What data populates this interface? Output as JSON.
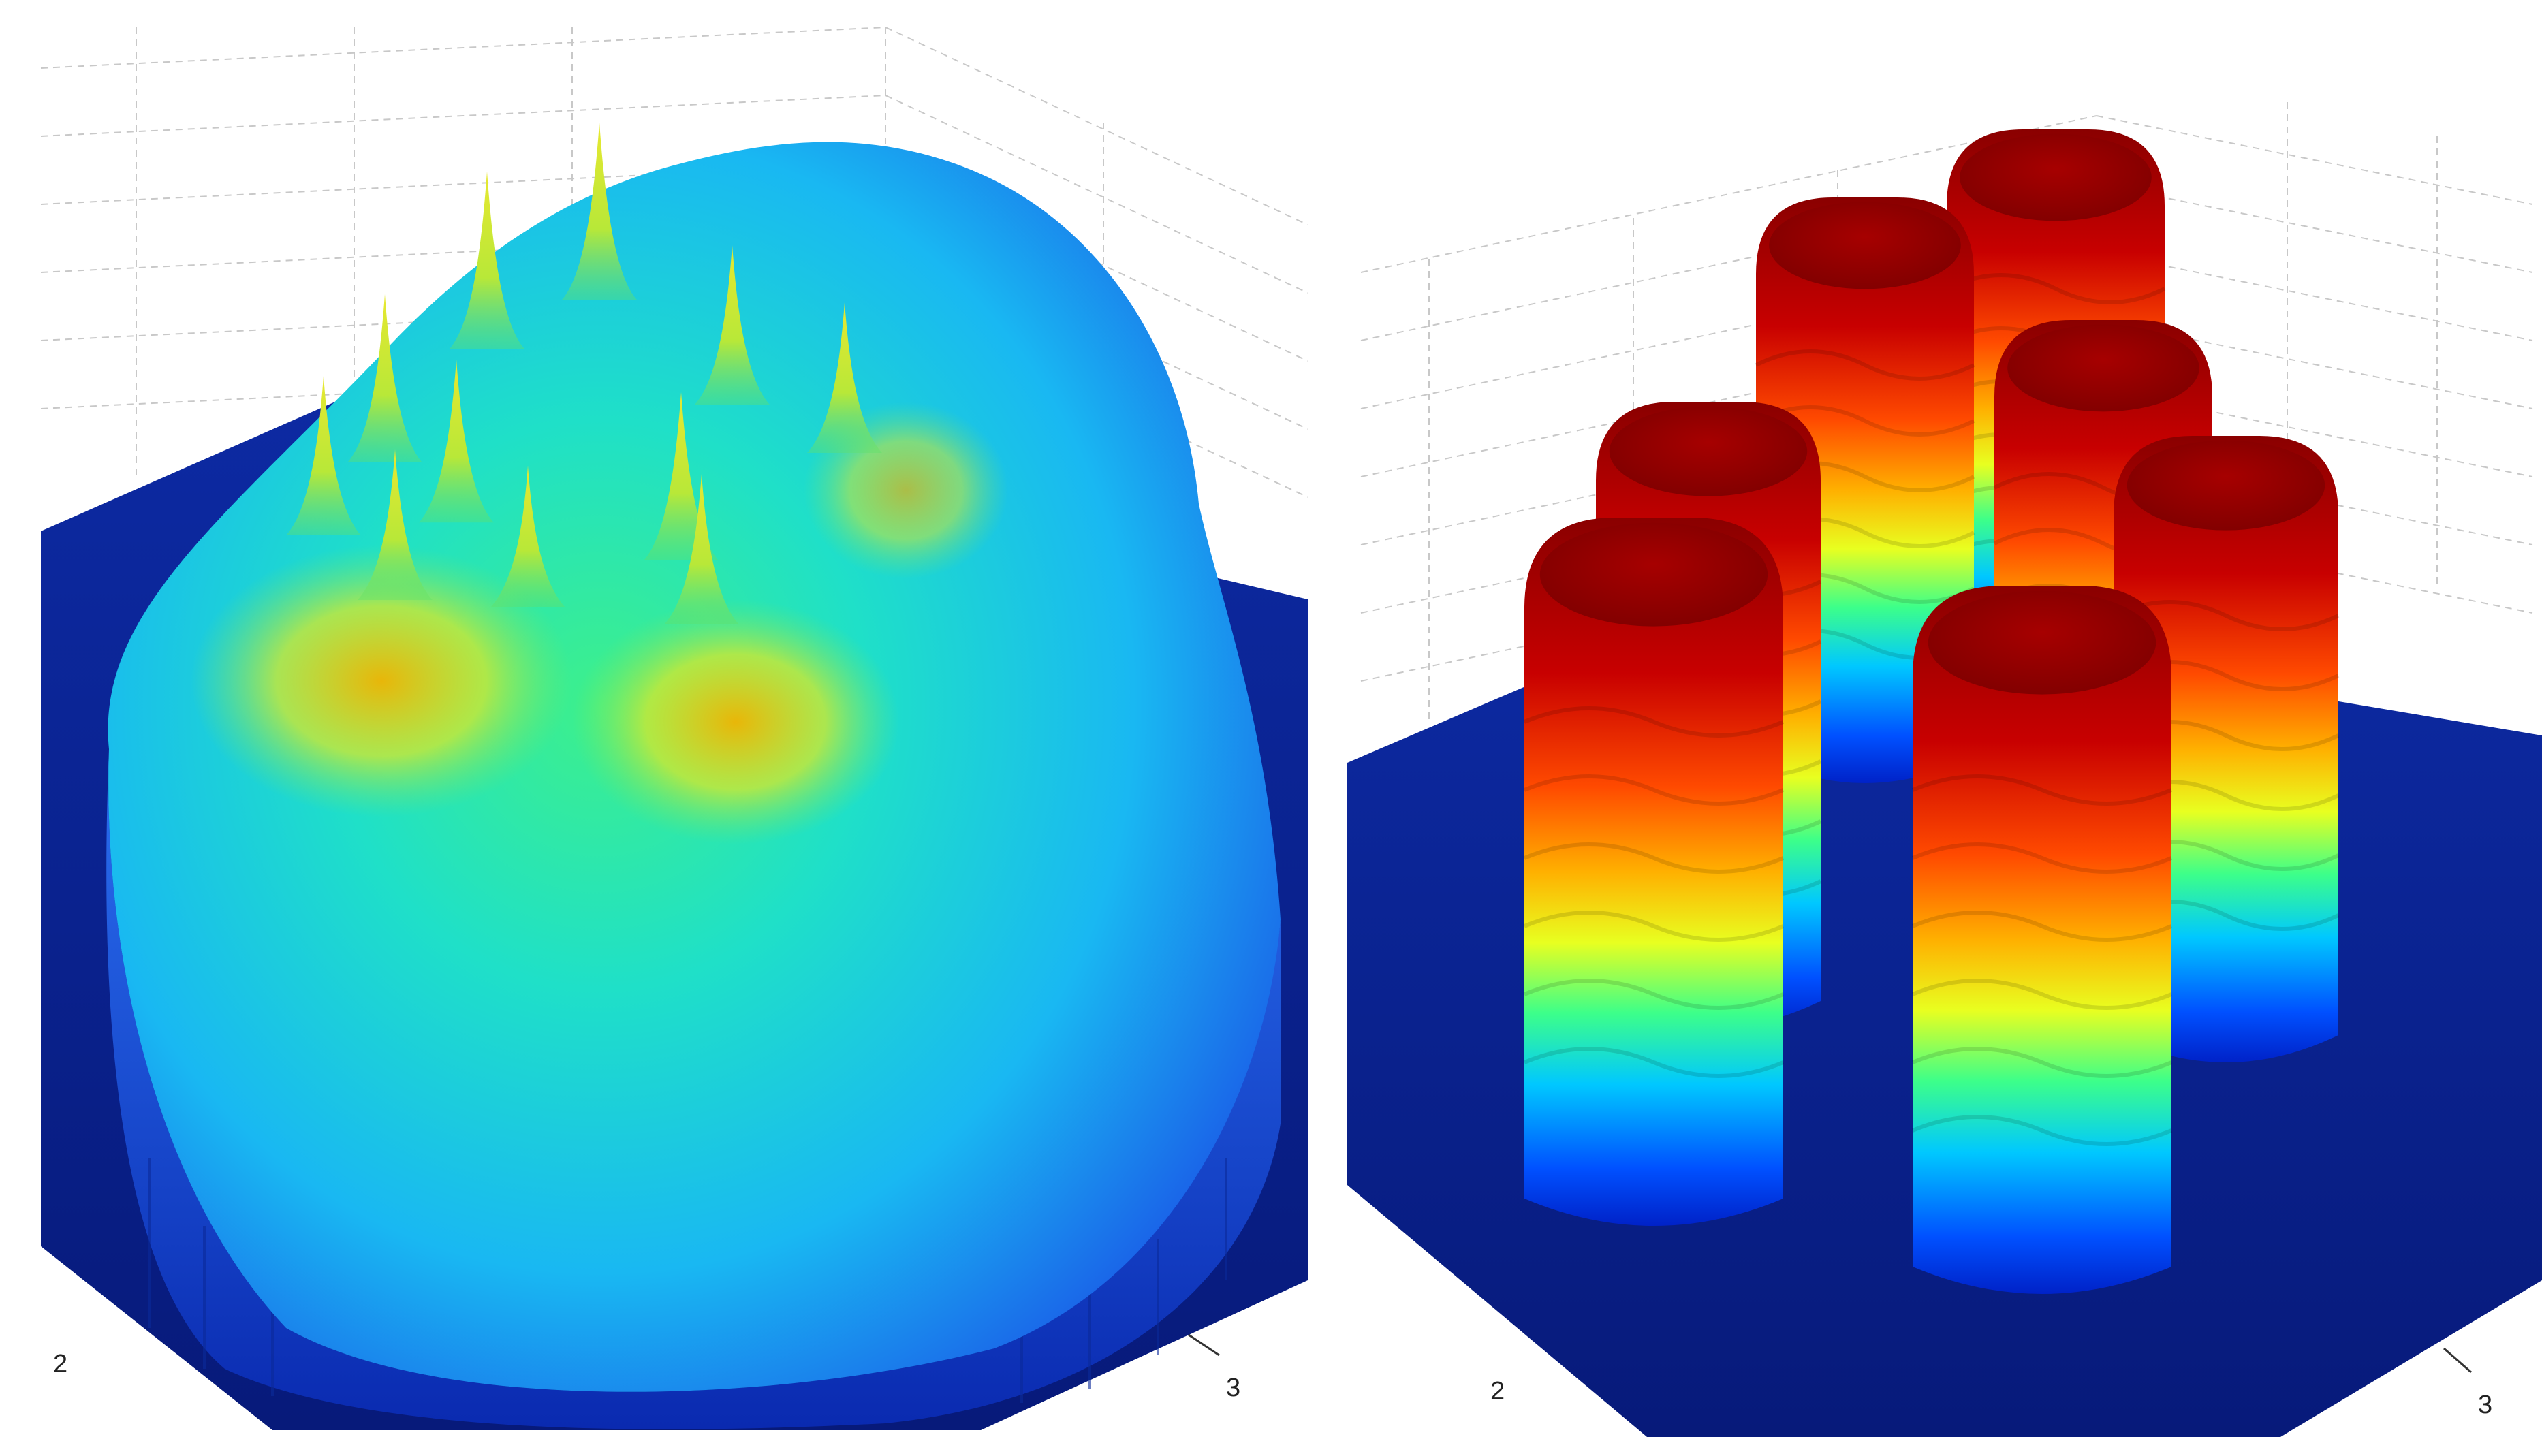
{
  "chart_data": [
    {
      "type": "surface",
      "description_labels": [],
      "colormap": "jet",
      "surface_color_range": [
        "#1a5fe8",
        "#00d0ff",
        "#19e07f",
        "#c8e82a",
        "#f2b400"
      ],
      "base_color": "#0b1f8f",
      "grid": true,
      "tick_labels": {
        "left_axis": [
          "2"
        ],
        "right_axis": [
          "3"
        ]
      },
      "peaks": [
        {
          "x": 0.31,
          "y": 0.11,
          "z": 1.0
        },
        {
          "x": 0.42,
          "y": 0.05,
          "z": 1.0
        },
        {
          "x": 0.55,
          "y": 0.2,
          "z": 0.9
        },
        {
          "x": 0.66,
          "y": 0.27,
          "z": 0.85
        },
        {
          "x": 0.21,
          "y": 0.26,
          "z": 0.95
        },
        {
          "x": 0.15,
          "y": 0.36,
          "z": 0.9
        },
        {
          "x": 0.28,
          "y": 0.34,
          "z": 0.92
        },
        {
          "x": 0.5,
          "y": 0.38,
          "z": 0.95
        },
        {
          "x": 0.22,
          "y": 0.45,
          "z": 0.85
        },
        {
          "x": 0.35,
          "y": 0.47,
          "z": 0.8
        },
        {
          "x": 0.52,
          "y": 0.48,
          "z": 0.85
        }
      ]
    },
    {
      "type": "surface",
      "description_labels": [],
      "colormap": "jet",
      "surface_color_range": [
        "#0033ff",
        "#00c8ff",
        "#3cff8a",
        "#ffff00",
        "#ff8000",
        "#d00000",
        "#8a0000"
      ],
      "base_color": "#0b1f8f",
      "grid": true,
      "tick_labels": {
        "left_axis": [
          "2"
        ],
        "right_axis": [
          "3"
        ]
      },
      "mounds": 7
    }
  ],
  "labels": {
    "left_tick_2": "2",
    "left_tick_3": "3",
    "right_tick_2": "2",
    "right_tick_3": "3"
  }
}
